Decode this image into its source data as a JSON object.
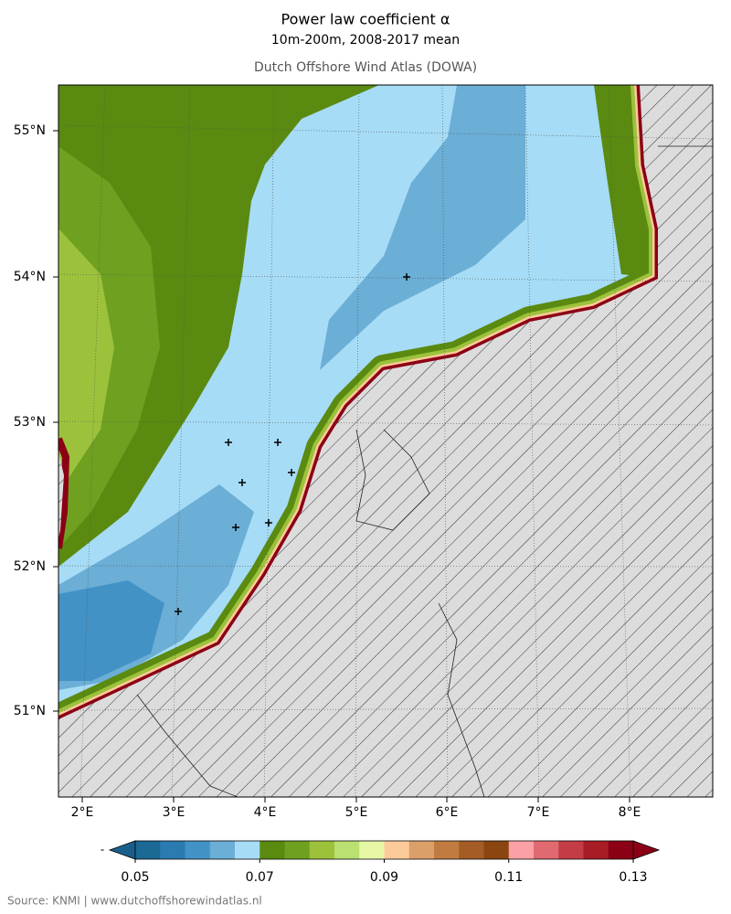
{
  "header": {
    "title": "Power law coefficient α",
    "subtitle": "10m-200m, 2008-2017 mean",
    "atlas": "Dutch Offshore Wind Atlas (DOWA)"
  },
  "map": {
    "lat_labels": [
      "55°N",
      "54°N",
      "53°N",
      "52°N",
      "51°N"
    ],
    "lon_labels": [
      "2°E",
      "3°E",
      "4°E",
      "5°E",
      "6°E",
      "7°E",
      "8°E"
    ]
  },
  "colorbar": {
    "under_label": "-",
    "ticks": [
      0.05,
      0.07,
      0.09,
      0.11,
      0.13
    ],
    "under_color": "#1a5f8a",
    "over_color": "#8b0015",
    "colors": [
      "#1b6a96",
      "#2b7bb0",
      "#4292c6",
      "#6baed6",
      "#a6dcf5",
      "#5a8a10",
      "#6fa020",
      "#9cc23c",
      "#b9e070",
      "#e6f7a6",
      "#fdcb9a",
      "#dba06a",
      "#c07c40",
      "#a55c25",
      "#8a4510",
      "#fba0a5",
      "#e06a70",
      "#c43c45",
      "#a71c25",
      "#8b0015"
    ]
  },
  "footer": "Source: KNMI | www.dutchoffshorewindatlas.nl"
}
